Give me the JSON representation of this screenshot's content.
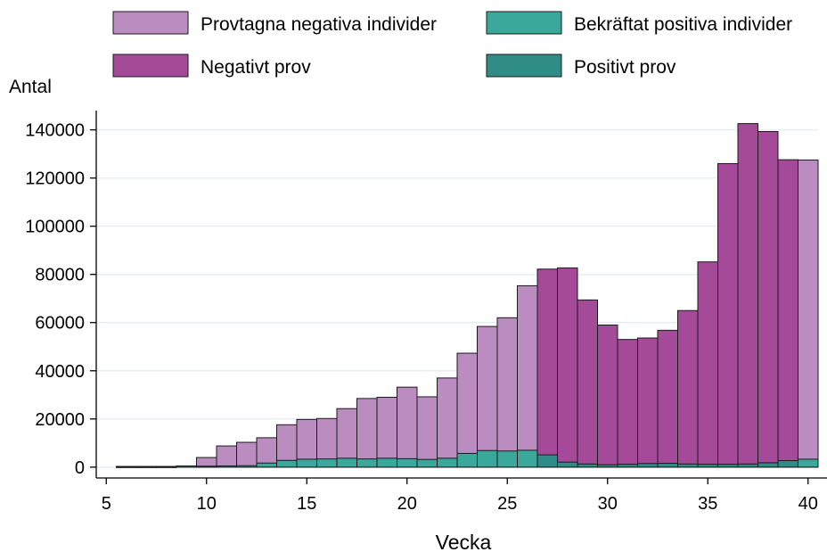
{
  "chart_data": {
    "type": "bar",
    "xlabel": "Vecka",
    "ylabel": "Antal",
    "xlim": [
      4.5,
      40.5
    ],
    "ylim": [
      -4500,
      148000
    ],
    "xticks": [
      5,
      10,
      15,
      20,
      25,
      30,
      35,
      40
    ],
    "yticks": [
      0,
      20000,
      40000,
      60000,
      80000,
      100000,
      120000,
      140000
    ],
    "grid": true,
    "legend_position": "top",
    "x": [
      6,
      7,
      8,
      9,
      10,
      11,
      12,
      13,
      14,
      15,
      16,
      17,
      18,
      19,
      20,
      21,
      22,
      23,
      24,
      25,
      26,
      27,
      28,
      29,
      30,
      31,
      32,
      33,
      34,
      35,
      36,
      37,
      38,
      39,
      40
    ],
    "series": [
      {
        "name": "Provtagna negativa individer",
        "color": "#bb8cc0",
        "values": [
          300,
          300,
          300,
          300,
          4000,
          8800,
          10300,
          12200,
          17600,
          19800,
          20200,
          24300,
          28500,
          29000,
          33200,
          29200,
          37000,
          47300,
          58400,
          62000,
          75300,
          null,
          null,
          null,
          null,
          null,
          null,
          null,
          null,
          null,
          null,
          null,
          null,
          null,
          127500
        ]
      },
      {
        "name": "Negativt prov",
        "color": "#a44a99",
        "values": [
          null,
          null,
          null,
          null,
          null,
          null,
          null,
          null,
          null,
          null,
          null,
          null,
          null,
          null,
          null,
          null,
          null,
          null,
          null,
          null,
          null,
          82200,
          82700,
          69400,
          59000,
          53000,
          53600,
          56800,
          65000,
          85200,
          126000,
          142600,
          139300,
          127600,
          null
        ]
      },
      {
        "name": "Bekräftat positiva individer",
        "color": "#3aa99b",
        "values": [
          0,
          0,
          0,
          500,
          400,
          500,
          600,
          1700,
          2800,
          3300,
          3400,
          3700,
          3400,
          3700,
          3500,
          3200,
          3700,
          5700,
          6900,
          6700,
          7000,
          null,
          null,
          null,
          null,
          null,
          null,
          null,
          null,
          null,
          null,
          null,
          null,
          null,
          3300
        ]
      },
      {
        "name": "Positivt prov",
        "color": "#2f8c86",
        "values": [
          null,
          null,
          null,
          null,
          null,
          null,
          null,
          null,
          null,
          null,
          null,
          null,
          null,
          null,
          null,
          null,
          null,
          null,
          null,
          null,
          null,
          5100,
          2100,
          1300,
          1000,
          1200,
          1500,
          1600,
          1300,
          1200,
          1200,
          1300,
          1800,
          2700,
          null
        ]
      }
    ],
    "legend": [
      {
        "label": "Provtagna negativa individer",
        "color": "#bb8cc0"
      },
      {
        "label": "Bekräftat positiva individer",
        "color": "#3aa99b"
      },
      {
        "label": "Negativt prov",
        "color": "#a44a99"
      },
      {
        "label": "Positivt prov",
        "color": "#2f8c86"
      }
    ]
  }
}
